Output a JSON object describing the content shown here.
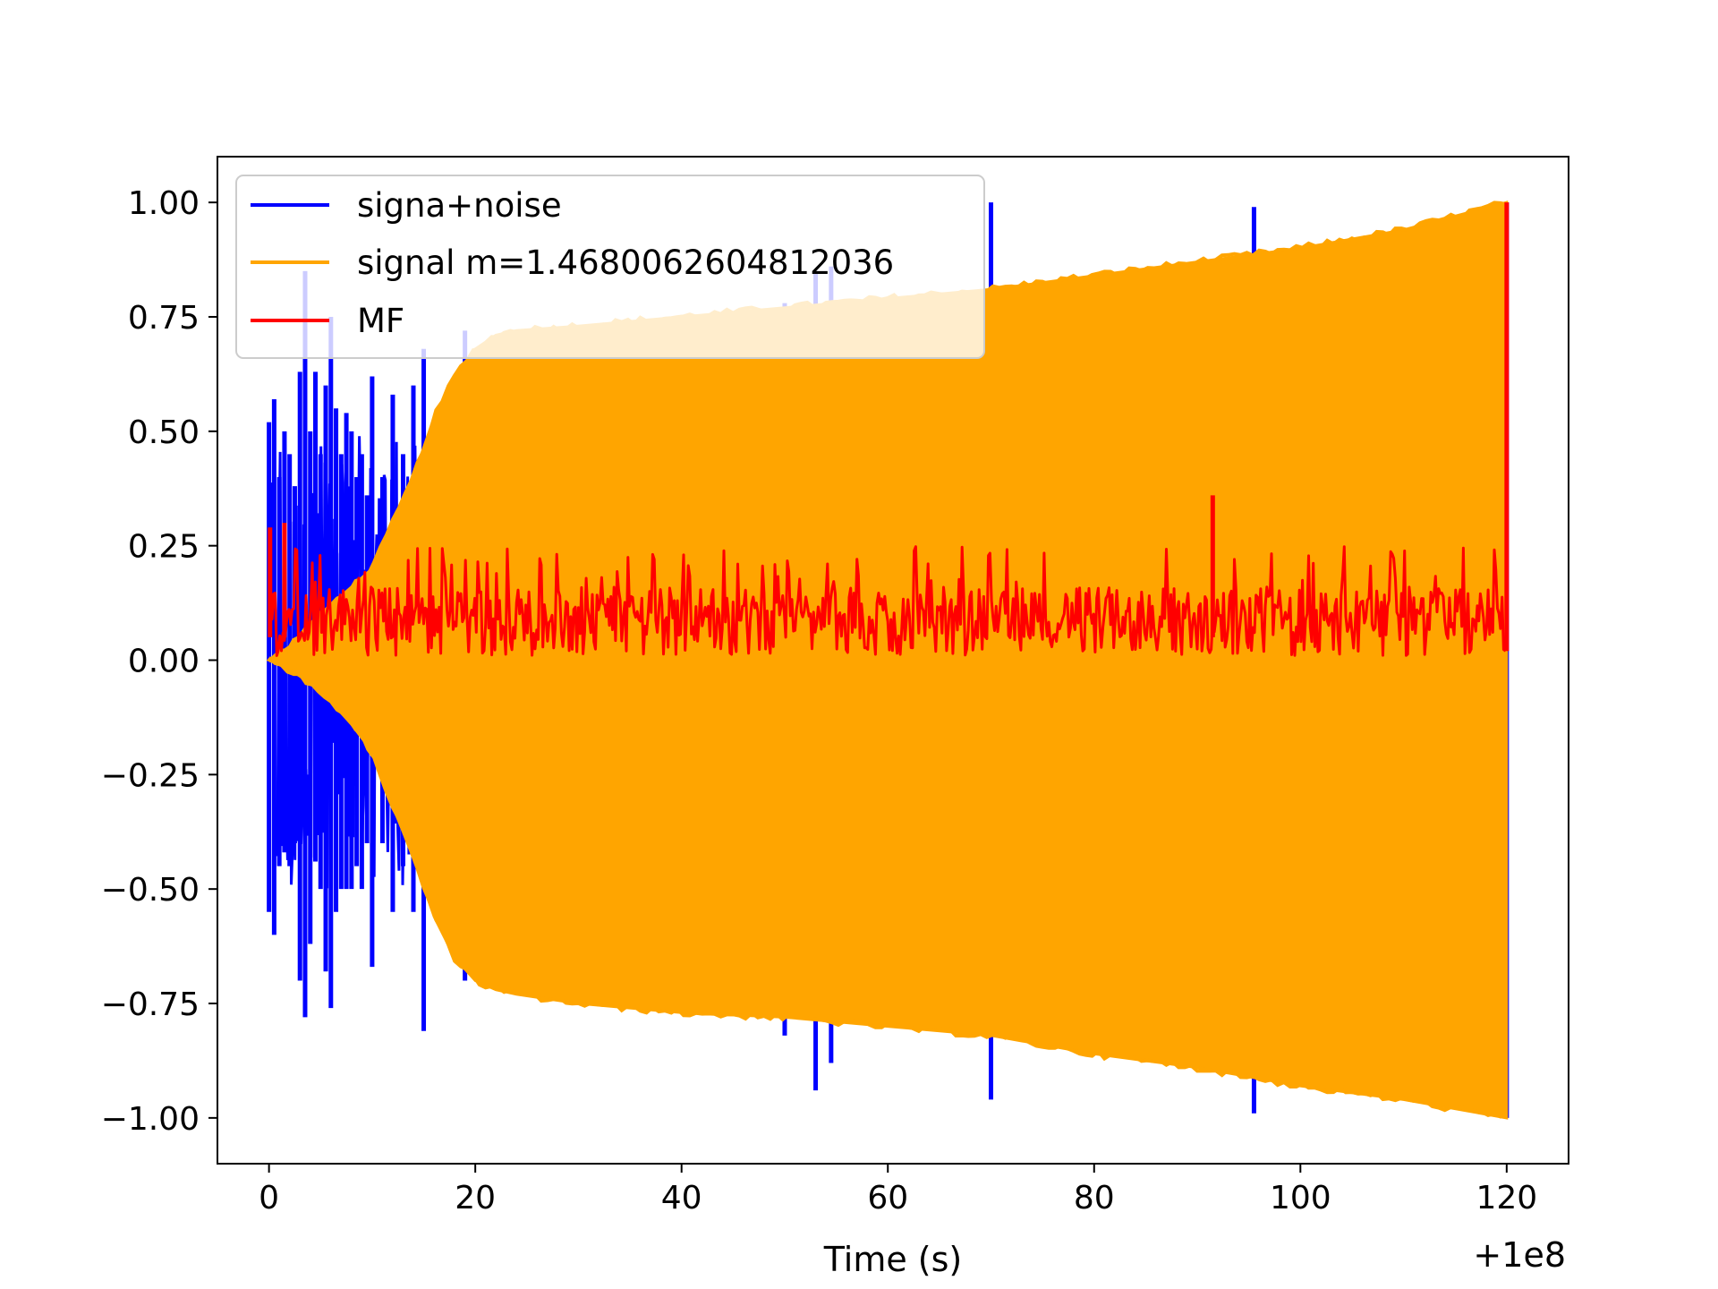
{
  "chart_data": {
    "type": "line",
    "title": "",
    "xlabel": "Time (s)",
    "ylabel": "",
    "x_offset_label": "+1e8",
    "xlim": [
      -5,
      126
    ],
    "ylim": [
      -1.1,
      1.1
    ],
    "xticks": [
      0,
      20,
      40,
      60,
      80,
      100,
      120
    ],
    "xtick_labels": [
      "0",
      "20",
      "40",
      "60",
      "80",
      "100",
      "120"
    ],
    "yticks": [
      1.0,
      0.75,
      0.5,
      0.25,
      0.0,
      -0.25,
      -0.5,
      -0.75,
      -1.0
    ],
    "ytick_labels": [
      "1.00",
      "0.75",
      "0.50",
      "0.25",
      "0.00",
      "−0.25",
      "−0.50",
      "−0.75",
      "−1.00"
    ],
    "grid": false,
    "legend_position": "top-left",
    "series": [
      {
        "name": "signa+noise",
        "color": "#0000ff",
        "spikes": [
          {
            "x": 0.0,
            "top": 0.52,
            "bottom": -0.55
          },
          {
            "x": 0.5,
            "top": 0.57,
            "bottom": -0.6
          },
          {
            "x": 1.0,
            "top": 0.4,
            "bottom": -0.45
          },
          {
            "x": 1.5,
            "top": 0.5,
            "bottom": -0.42
          },
          {
            "x": 2.0,
            "top": 0.45,
            "bottom": -0.45
          },
          {
            "x": 2.5,
            "top": 0.38,
            "bottom": -0.4
          },
          {
            "x": 3.0,
            "top": 0.63,
            "bottom": -0.7
          },
          {
            "x": 3.5,
            "top": 0.85,
            "bottom": -0.78
          },
          {
            "x": 4.0,
            "top": 0.5,
            "bottom": -0.62
          },
          {
            "x": 4.5,
            "top": 0.63,
            "bottom": -0.44
          },
          {
            "x": 5.0,
            "top": 0.45,
            "bottom": -0.5
          },
          {
            "x": 5.5,
            "top": 0.6,
            "bottom": -0.68
          },
          {
            "x": 6.0,
            "top": 0.75,
            "bottom": -0.76
          },
          {
            "x": 6.5,
            "top": 0.55,
            "bottom": -0.55
          },
          {
            "x": 7.0,
            "top": 0.45,
            "bottom": -0.5
          },
          {
            "x": 7.5,
            "top": 0.54,
            "bottom": -0.5
          },
          {
            "x": 8.0,
            "top": 0.5,
            "bottom": -0.5
          },
          {
            "x": 8.5,
            "top": 0.4,
            "bottom": -0.45
          },
          {
            "x": 9.0,
            "top": 0.45,
            "bottom": -0.5
          },
          {
            "x": 9.5,
            "top": 0.36,
            "bottom": -0.4
          },
          {
            "x": 10.0,
            "top": 0.62,
            "bottom": -0.67
          },
          {
            "x": 11.0,
            "top": 0.4,
            "bottom": -0.4
          },
          {
            "x": 12.0,
            "top": 0.58,
            "bottom": -0.55
          },
          {
            "x": 13.0,
            "top": 0.45,
            "bottom": -0.45
          },
          {
            "x": 14.0,
            "top": 0.6,
            "bottom": -0.55
          },
          {
            "x": 15.0,
            "top": 0.68,
            "bottom": -0.81
          },
          {
            "x": 16.0,
            "top": 0.5,
            "bottom": -0.55
          },
          {
            "x": 19.0,
            "top": 0.72,
            "bottom": -0.7
          },
          {
            "x": 37.5,
            "top": 0.74,
            "bottom": -0.76
          },
          {
            "x": 50.0,
            "top": 0.78,
            "bottom": -0.82
          },
          {
            "x": 53.0,
            "top": 0.85,
            "bottom": -0.94
          },
          {
            "x": 54.5,
            "top": 0.86,
            "bottom": -0.88
          },
          {
            "x": 70.0,
            "top": 1.0,
            "bottom": -0.96
          },
          {
            "x": 95.5,
            "top": 0.99,
            "bottom": -0.99
          },
          {
            "x": 120.0,
            "top": 1.0,
            "bottom": -1.0
          }
        ]
      },
      {
        "name": "signal m=1.4680062604812036",
        "color": "#ffa500",
        "envelope": {
          "x": [
            0,
            2,
            4,
            6,
            8,
            10,
            12,
            14,
            16,
            18,
            20,
            22,
            24,
            30,
            40,
            50,
            60,
            70,
            80,
            90,
            100,
            110,
            120
          ],
          "upper": [
            0.0,
            0.03,
            0.08,
            0.12,
            0.16,
            0.2,
            0.3,
            0.4,
            0.53,
            0.62,
            0.68,
            0.71,
            0.72,
            0.73,
            0.75,
            0.77,
            0.79,
            0.81,
            0.84,
            0.87,
            0.9,
            0.94,
            1.0
          ],
          "lower": [
            0.0,
            -0.02,
            -0.05,
            -0.09,
            -0.14,
            -0.2,
            -0.32,
            -0.43,
            -0.56,
            -0.65,
            -0.7,
            -0.72,
            -0.73,
            -0.75,
            -0.77,
            -0.78,
            -0.8,
            -0.82,
            -0.86,
            -0.89,
            -0.93,
            -0.96,
            -1.0
          ]
        }
      },
      {
        "name": "MF",
        "color": "#ff0000",
        "baseline": 0.1,
        "typical_low": 0.01,
        "typical_high": 0.25,
        "peaks": [
          {
            "x": 0.1,
            "y": 0.29
          },
          {
            "x": 1.5,
            "y": 0.3
          },
          {
            "x": 91.5,
            "y": 0.36
          },
          {
            "x": 120.0,
            "y": 1.0
          }
        ]
      }
    ]
  }
}
